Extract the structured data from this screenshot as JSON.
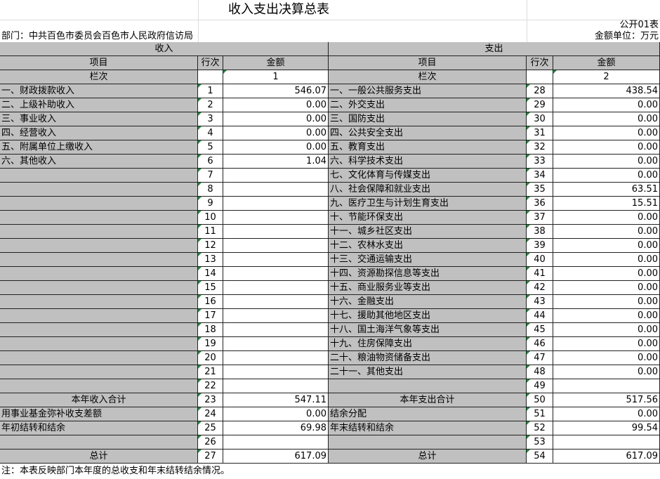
{
  "header": {
    "title": "收入支出决算总表",
    "form_no": "公开01表",
    "department": "部门：中共百色市委员会百色市人民政府信访局",
    "unit": "金额单位：万元"
  },
  "sections": [
    "收入",
    "支出"
  ],
  "column_headers": [
    "项目",
    "行次",
    "金额",
    "项目",
    "行次",
    "金额"
  ],
  "column_numbers": [
    "栏次",
    null,
    "1",
    "栏次",
    null,
    "2"
  ],
  "table": {
    "rows": [
      [
        "一、财政拨款收入",
        1,
        "546.07",
        "一、一般公共服务支出",
        28,
        "438.54"
      ],
      [
        "二、上级补助收入",
        2,
        "0.00",
        "二、外交支出",
        29,
        "0.00"
      ],
      [
        "三、事业收入",
        3,
        "0.00",
        "三、国防支出",
        30,
        "0.00"
      ],
      [
        "四、经营收入",
        4,
        "0.00",
        "四、公共安全支出",
        31,
        "0.00"
      ],
      [
        "五、附属单位上缴收入",
        5,
        "0.00",
        "五、教育支出",
        32,
        "0.00"
      ],
      [
        "六、其他收入",
        6,
        "1.04",
        "六、科学技术支出",
        33,
        "0.00"
      ],
      [
        null,
        7,
        null,
        "七、文化体育与传媒支出",
        34,
        "0.00"
      ],
      [
        null,
        8,
        null,
        "八、社会保障和就业支出",
        35,
        "63.51"
      ],
      [
        null,
        9,
        null,
        "九、医疗卫生与计划生育支出",
        36,
        "15.51"
      ],
      [
        null,
        10,
        null,
        "十、节能环保支出",
        37,
        "0.00"
      ],
      [
        null,
        11,
        null,
        "十一、城乡社区支出",
        38,
        "0.00"
      ],
      [
        null,
        12,
        null,
        "十二、农林水支出",
        39,
        "0.00"
      ],
      [
        null,
        13,
        null,
        "十三、交通运输支出",
        40,
        "0.00"
      ],
      [
        null,
        14,
        null,
        "十四、资源勘探信息等支出",
        41,
        "0.00"
      ],
      [
        null,
        15,
        null,
        "十五、商业服务业等支出",
        42,
        "0.00"
      ],
      [
        null,
        16,
        null,
        "十六、金融支出",
        43,
        "0.00"
      ],
      [
        null,
        17,
        null,
        "十七、援助其他地区支出",
        44,
        "0.00"
      ],
      [
        null,
        18,
        null,
        "十八、国土海洋气象等支出",
        45,
        "0.00"
      ],
      [
        null,
        19,
        null,
        "十九、住房保障支出",
        46,
        "0.00"
      ],
      [
        null,
        20,
        null,
        "二十、粮油物资储备支出",
        47,
        "0.00"
      ],
      [
        null,
        21,
        null,
        "二十一、其他支出",
        48,
        "0.00"
      ],
      [
        null,
        22,
        null,
        null,
        49,
        null
      ],
      [
        "本年收入合计",
        23,
        "547.11",
        "本年支出合计",
        50,
        "517.56"
      ],
      [
        "用事业基金弥补收支差额",
        24,
        "0.00",
        "结余分配",
        51,
        "0.00"
      ],
      [
        "年初结转和结余",
        25,
        "69.98",
        "年末结转和结余",
        52,
        "99.54"
      ],
      [
        null,
        26,
        null,
        null,
        53,
        null
      ],
      [
        "总计",
        27,
        "617.09",
        "总计",
        54,
        "617.09"
      ]
    ]
  },
  "note": "注：本表反映部门本年度的总收支和年末结转结余情况。"
}
